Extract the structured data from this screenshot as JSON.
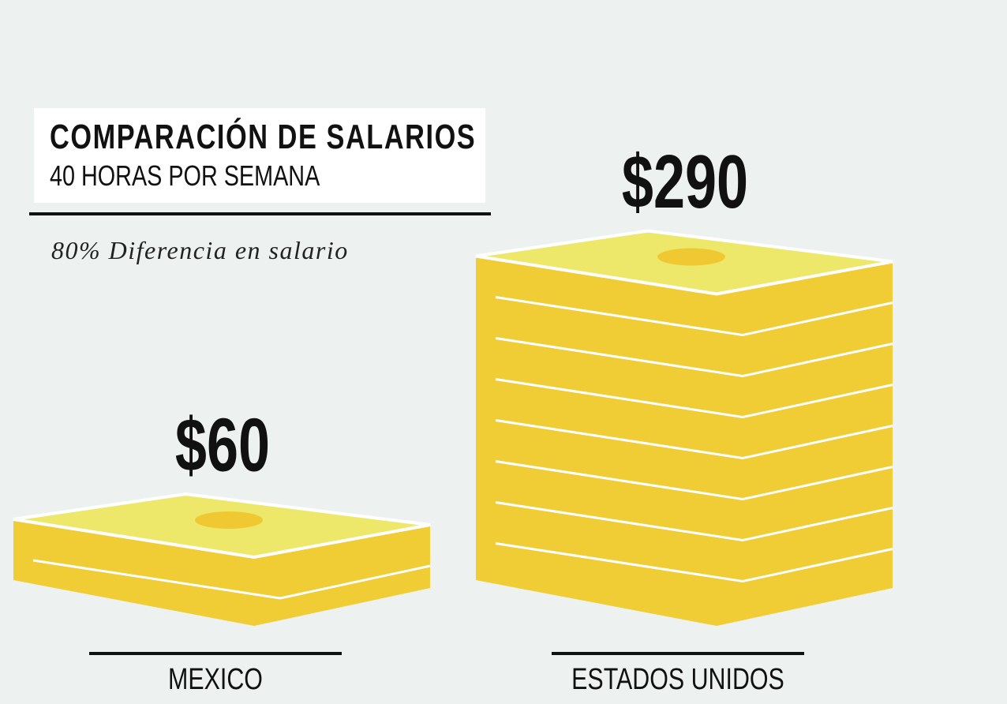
{
  "chart_data": {
    "type": "bar",
    "title": "COMPARACIÓN DE SALARIOS",
    "subtitle": "40 HORAS POR SEMANA",
    "annotation": "80% Diferencia en salario",
    "categories": [
      "MEXICO",
      "ESTADOS UNIDOS"
    ],
    "values": [
      60,
      290
    ],
    "value_labels": [
      "$60",
      "$290"
    ],
    "color": "#f0cc35"
  }
}
